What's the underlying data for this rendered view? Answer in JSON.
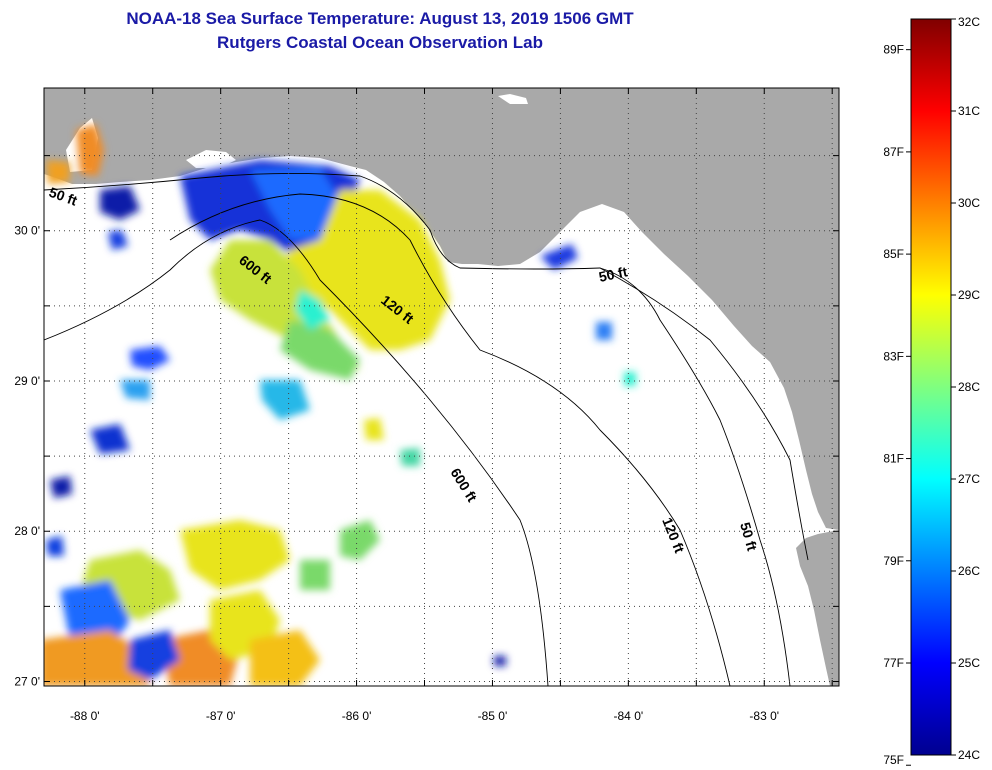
{
  "header": {
    "title": "NOAA-18 Sea Surface Temperature:  August 13, 2019 1506 GMT",
    "subtitle": "Rutgers Coastal Ocean Observation Lab"
  },
  "map": {
    "lon_range": [
      -88.3,
      -82.45
    ],
    "lat_range": [
      26.97,
      30.95
    ],
    "lon_ticks": [
      {
        "value": -88,
        "label": "-88 0'"
      },
      {
        "value": -87,
        "label": "-87 0'"
      },
      {
        "value": -86,
        "label": "-86 0'"
      },
      {
        "value": -85,
        "label": "-85 0'"
      },
      {
        "value": -84,
        "label": "-84 0'"
      },
      {
        "value": -83,
        "label": "-83 0'"
      }
    ],
    "lat_ticks": [
      {
        "value": 30,
        "label": "30 0'"
      },
      {
        "value": 29,
        "label": "29 0'"
      },
      {
        "value": 28,
        "label": "28 0'"
      },
      {
        "value": 27,
        "label": "27 0'"
      }
    ],
    "contour_labels": [
      "50 ft",
      "600 ft",
      "120 ft",
      "50 ft",
      "600 ft",
      "120 ft",
      "50 ft"
    ],
    "colors": {
      "land": "#a9a9a9",
      "ocean_nodata": "#ffffff",
      "grid": "#555555"
    }
  },
  "colorbar": {
    "c_ticks": [
      {
        "value": 32,
        "label": "32C"
      },
      {
        "value": 31,
        "label": "31C"
      },
      {
        "value": 30,
        "label": "30C"
      },
      {
        "value": 29,
        "label": "29C"
      },
      {
        "value": 28,
        "label": "28C"
      },
      {
        "value": 27,
        "label": "27C"
      },
      {
        "value": 26,
        "label": "26C"
      },
      {
        "value": 25,
        "label": "25C"
      },
      {
        "value": 24,
        "label": "24C"
      }
    ],
    "f_ticks": [
      {
        "value": 89,
        "label": "89F"
      },
      {
        "value": 87,
        "label": "87F"
      },
      {
        "value": 85,
        "label": "85F"
      },
      {
        "value": 83,
        "label": "83F"
      },
      {
        "value": 81,
        "label": "81F"
      },
      {
        "value": 79,
        "label": "79F"
      },
      {
        "value": 77,
        "label": "77F"
      },
      {
        "value": 75,
        "label": "75F"
      }
    ],
    "range_c": [
      24,
      32
    ]
  }
}
